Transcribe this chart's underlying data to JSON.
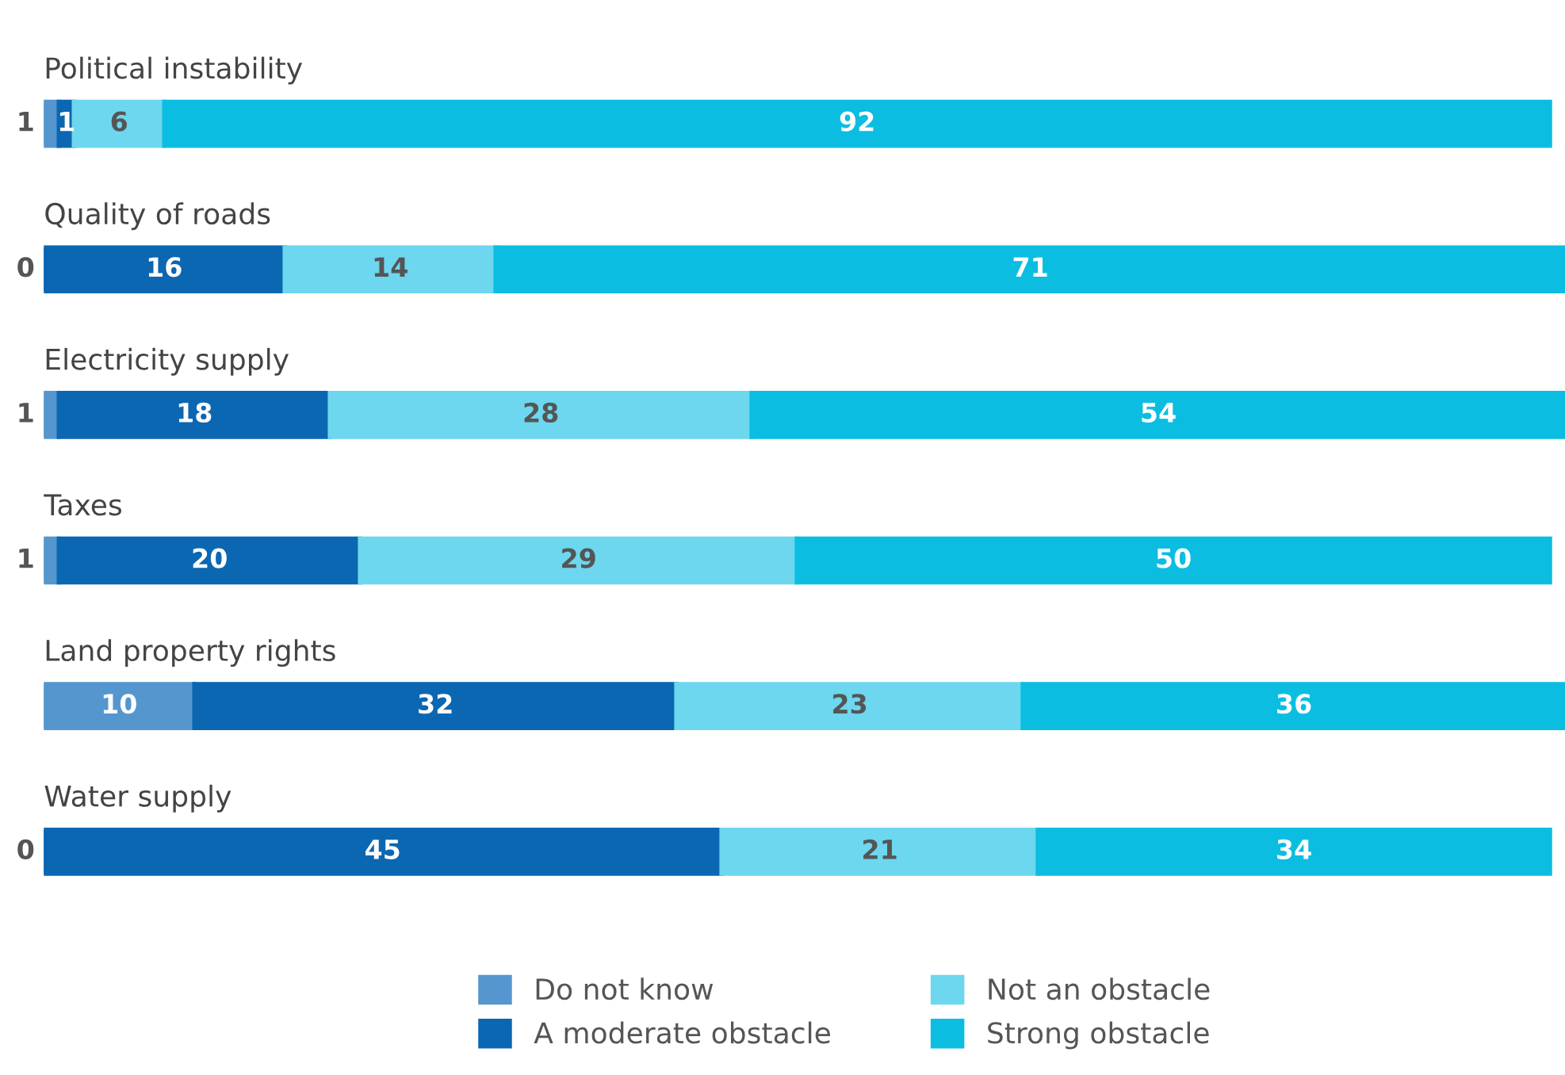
{
  "chart_data": {
    "type": "bar",
    "orientation": "horizontal",
    "stacked": true,
    "data_labels": true,
    "legend": "bottom",
    "categories": [
      "Political instability",
      "Quality of roads",
      "Electricity supply",
      "Taxes",
      "Land property rights",
      "Water supply"
    ],
    "series": [
      {
        "name": "Do not know",
        "color": "#5596cf",
        "values": [
          1,
          0,
          1,
          1,
          10,
          0
        ]
      },
      {
        "name": "A moderate obstacle",
        "color": "#0b67b2",
        "values": [
          1,
          16,
          18,
          20,
          32,
          45
        ]
      },
      {
        "name": "Not an obstacle",
        "color": "#6cd7ee",
        "values": [
          6,
          14,
          28,
          29,
          23,
          21
        ]
      },
      {
        "name": "Strong obstacle",
        "color": "#0bbee1",
        "values": [
          92,
          71,
          54,
          50,
          36,
          34
        ]
      }
    ]
  }
}
